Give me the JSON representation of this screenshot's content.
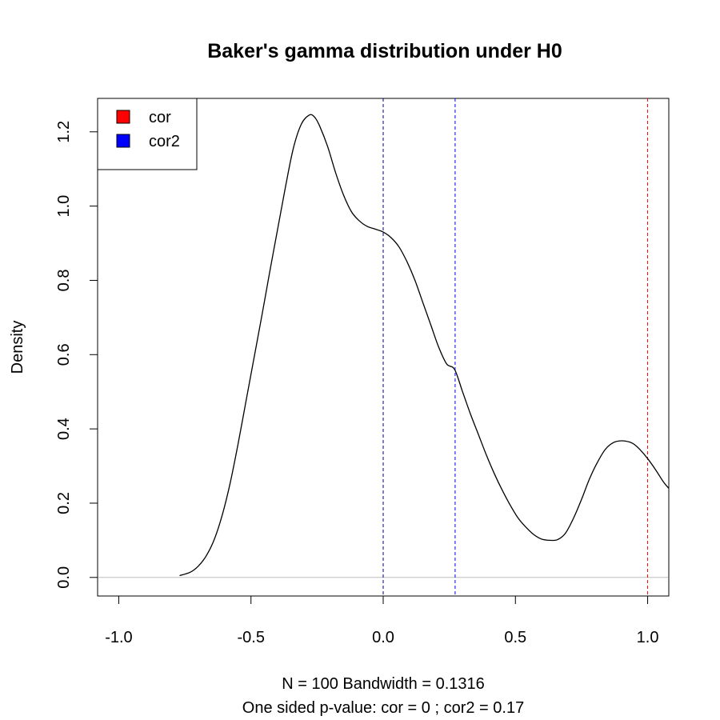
{
  "chart_data": {
    "type": "line",
    "title": "Baker's gamma distribution under H0",
    "xlabel_line1": "N = 100   Bandwidth = 0.1316",
    "xlabel_line2": "One sided p-value: cor = 0  ; cor2 = 0.17",
    "ylabel": "Density",
    "xlim": [
      -1.08,
      1.08
    ],
    "ylim": [
      -0.05,
      1.29
    ],
    "x_ticks": [
      -1.0,
      -0.5,
      0.0,
      0.5,
      1.0
    ],
    "x_tick_labels": [
      "-1.0",
      "-0.5",
      "0.0",
      "0.5",
      "1.0"
    ],
    "y_ticks": [
      0.0,
      0.2,
      0.4,
      0.6,
      0.8,
      1.0,
      1.2
    ],
    "y_tick_labels": [
      "0.0",
      "0.2",
      "0.4",
      "0.6",
      "0.8",
      "1.0",
      "1.2"
    ],
    "grid": false,
    "legend": {
      "placement": "top-left",
      "items": [
        {
          "label": "cor",
          "color": "#ff0000"
        },
        {
          "label": "cor2",
          "color": "#0000ff"
        }
      ]
    },
    "vlines": [
      {
        "x": 0.0,
        "color": "#000080",
        "style": "dashed"
      },
      {
        "x": 0.272,
        "color": "#0000ff",
        "style": "dashed"
      },
      {
        "x": 1.0,
        "color": "#ff0000",
        "style": "dashed"
      }
    ],
    "baseline": {
      "y": 0.0,
      "color": "#bebebe"
    },
    "series": [
      {
        "color": "#000000",
        "x": [
          -0.77,
          -0.73,
          -0.7,
          -0.67,
          -0.64,
          -0.61,
          -0.58,
          -0.55,
          -0.52,
          -0.49,
          -0.46,
          -0.43,
          -0.4,
          -0.37,
          -0.34,
          -0.31,
          -0.28,
          -0.26,
          -0.24,
          -0.21,
          -0.18,
          -0.15,
          -0.12,
          -0.09,
          -0.06,
          -0.03,
          0.0,
          0.03,
          0.06,
          0.09,
          0.12,
          0.15,
          0.18,
          0.21,
          0.24,
          0.27,
          0.3,
          0.33,
          0.36,
          0.39,
          0.42,
          0.45,
          0.48,
          0.51,
          0.54,
          0.57,
          0.6,
          0.63,
          0.66,
          0.69,
          0.72,
          0.75,
          0.78,
          0.81,
          0.84,
          0.87,
          0.9,
          0.93,
          0.95,
          0.97,
          1.0,
          1.03,
          1.06,
          1.08
        ],
        "y": [
          0.005,
          0.014,
          0.03,
          0.057,
          0.1,
          0.165,
          0.25,
          0.355,
          0.47,
          0.585,
          0.7,
          0.82,
          0.935,
          1.05,
          1.155,
          1.22,
          1.245,
          1.24,
          1.215,
          1.16,
          1.09,
          1.03,
          0.985,
          0.96,
          0.945,
          0.938,
          0.93,
          0.915,
          0.89,
          0.85,
          0.8,
          0.74,
          0.68,
          0.62,
          0.575,
          0.56,
          0.5,
          0.44,
          0.385,
          0.33,
          0.28,
          0.235,
          0.195,
          0.16,
          0.135,
          0.115,
          0.103,
          0.1,
          0.102,
          0.12,
          0.16,
          0.21,
          0.265,
          0.31,
          0.345,
          0.363,
          0.368,
          0.365,
          0.358,
          0.345,
          0.32,
          0.29,
          0.257,
          0.24
        ]
      }
    ]
  }
}
